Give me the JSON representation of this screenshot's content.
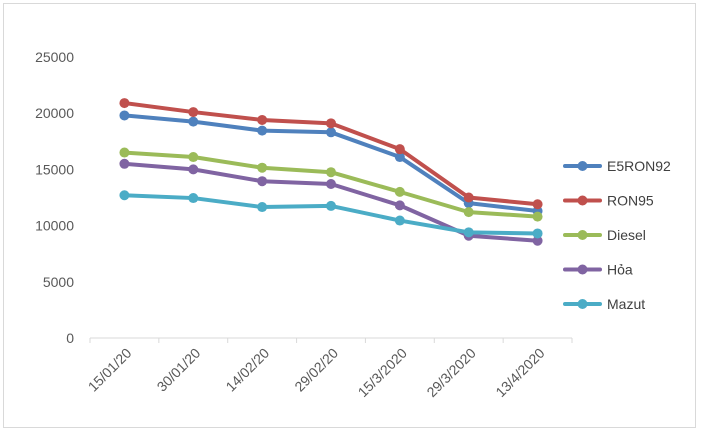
{
  "chart_data": {
    "type": "line",
    "title": "",
    "xlabel": "",
    "ylabel": "",
    "categories": [
      "15/01/20",
      "30/01/20",
      "14/02/20",
      "29/02/20",
      "15/3/2020",
      "29/3/2020",
      "13/4/2020"
    ],
    "ylim": [
      0,
      25000
    ],
    "yticks": [
      0,
      5000,
      10000,
      15000,
      20000,
      25000
    ],
    "grid": false,
    "legend_position": "right",
    "series": [
      {
        "name": "E5RON92",
        "color": "#4f81bd",
        "values": [
          19800,
          19250,
          18450,
          18300,
          16100,
          12000,
          11300
        ]
      },
      {
        "name": "RON95",
        "color": "#c0504d",
        "values": [
          20900,
          20100,
          19400,
          19100,
          16800,
          12500,
          11900
        ]
      },
      {
        "name": "Diesel",
        "color": "#9bbb59",
        "values": [
          16500,
          16100,
          15150,
          14750,
          13000,
          11200,
          10800
        ]
      },
      {
        "name": "Hỏa",
        "color": "#8064a2",
        "values": [
          15500,
          15000,
          13950,
          13700,
          11800,
          9100,
          8650
        ]
      },
      {
        "name": "Mazut",
        "color": "#4bacc6",
        "values": [
          12700,
          12450,
          11650,
          11750,
          10450,
          9400,
          9300
        ]
      }
    ]
  }
}
